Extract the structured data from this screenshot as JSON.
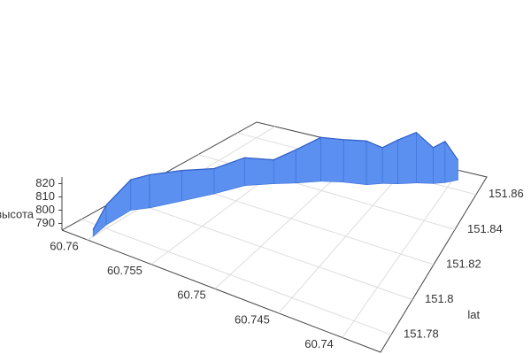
{
  "chart_data": {
    "type": "ribbon3d",
    "x": [
      60.76,
      60.7603,
      60.7603,
      60.7595,
      60.7583,
      60.757,
      60.7558,
      60.754,
      60.7525,
      60.7508,
      60.749,
      60.747,
      60.7458,
      60.7445,
      60.743,
      60.7415,
      60.7405,
      60.7395
    ],
    "y": [
      151.773,
      151.782,
      151.795,
      151.8,
      151.81,
      151.82,
      151.83,
      151.836,
      151.84,
      151.845,
      151.848,
      151.85,
      151.853,
      151.855,
      151.858,
      151.86,
      151.862,
      151.865
    ],
    "z": [
      790,
      800,
      808,
      810,
      808,
      804,
      806,
      803,
      810,
      818,
      817,
      818,
      812,
      818,
      823,
      812,
      816,
      800
    ],
    "color": "#5b8ff0",
    "xlim": [
      60.762,
      60.737
    ],
    "ylim": [
      151.77,
      151.87
    ],
    "zlim": [
      785,
      825
    ],
    "xticks": [
      60.76,
      60.755,
      60.75,
      60.745,
      60.74
    ],
    "yticks": [
      151.78,
      151.8,
      151.82,
      151.84,
      151.86
    ],
    "zticks": [
      790,
      800,
      810,
      820
    ],
    "ylabel": "lat",
    "zlabel": "высота",
    "grid": true
  }
}
